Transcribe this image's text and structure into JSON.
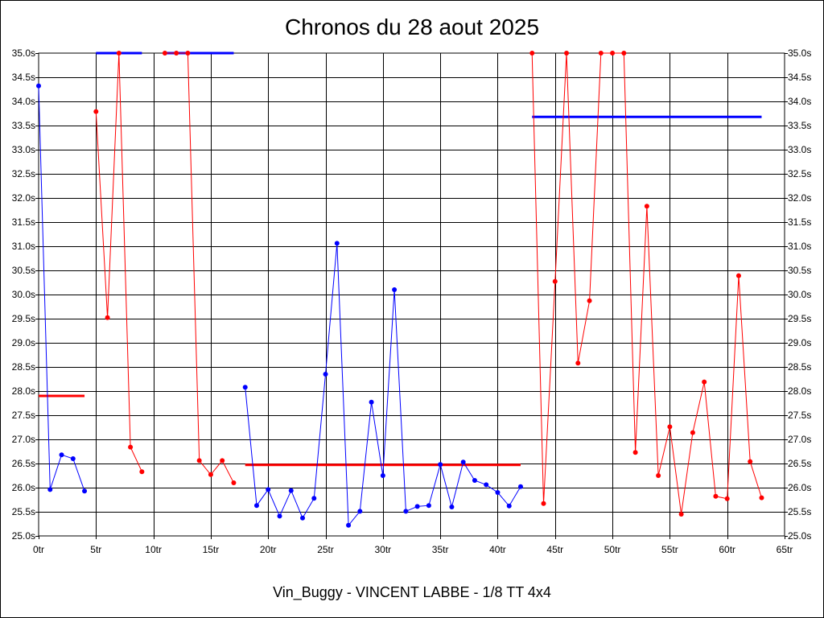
{
  "chart_data": {
    "type": "line",
    "title": "Chronos du 28 aout 2025",
    "subtitle": "Vin_Buggy - VINCENT LABBE - 1/8 TT 4x4",
    "xlim": [
      0,
      65
    ],
    "ylim": [
      25.0,
      35.0
    ],
    "x_ticks": [
      0,
      5,
      10,
      15,
      20,
      25,
      30,
      35,
      40,
      45,
      50,
      55,
      60,
      65
    ],
    "x_tick_labels": [
      "0tr",
      "5tr",
      "10tr",
      "15tr",
      "20tr",
      "25tr",
      "30tr",
      "35tr",
      "40tr",
      "45tr",
      "50tr",
      "55tr",
      "60tr",
      "65tr"
    ],
    "y_ticks": [
      25.0,
      25.5,
      26.0,
      26.5,
      27.0,
      27.5,
      28.0,
      28.5,
      29.0,
      29.5,
      30.0,
      30.5,
      31.0,
      31.5,
      32.0,
      32.5,
      33.0,
      33.5,
      34.0,
      34.5,
      35.0
    ],
    "y_tick_labels": [
      "25.0s",
      "25.5s",
      "26.0s",
      "26.5s",
      "27.0s",
      "27.5s",
      "28.0s",
      "28.5s",
      "29.0s",
      "29.5s",
      "30.0s",
      "30.5s",
      "31.0s",
      "31.5s",
      "32.0s",
      "32.5s",
      "33.0s",
      "33.5s",
      "34.0s",
      "34.5s",
      "35.0s"
    ],
    "grid": true,
    "y_axis_labels_both_sides": true,
    "colors": {
      "blue": "#0000ff",
      "red": "#ff0000"
    },
    "series": [
      {
        "color": "#0000ff",
        "points": [
          [
            0,
            34.32
          ],
          [
            1,
            25.96
          ],
          [
            2,
            26.68
          ],
          [
            3,
            26.6
          ],
          [
            4,
            25.93
          ]
        ]
      },
      {
        "color": "#ff0000",
        "points": [
          [
            5,
            33.79
          ],
          [
            6,
            29.52
          ],
          [
            7,
            35.0
          ],
          [
            8,
            26.84
          ],
          [
            9,
            26.33
          ]
        ]
      },
      {
        "color": "#ff0000",
        "points": [
          [
            11,
            35.0
          ],
          [
            12,
            35.0
          ],
          [
            13,
            35.0
          ],
          [
            14,
            26.56
          ],
          [
            15,
            26.27
          ],
          [
            16,
            26.56
          ],
          [
            17,
            26.1
          ]
        ]
      },
      {
        "color": "#0000ff",
        "points": [
          [
            18,
            28.08
          ],
          [
            19,
            25.63
          ],
          [
            20,
            25.96
          ],
          [
            21,
            25.41
          ],
          [
            22,
            25.94
          ],
          [
            23,
            25.37
          ],
          [
            24,
            25.78
          ],
          [
            25,
            28.35
          ],
          [
            26,
            31.06
          ],
          [
            27,
            25.22
          ],
          [
            28,
            25.51
          ],
          [
            29,
            27.77
          ],
          [
            30,
            26.25
          ],
          [
            31,
            30.1
          ],
          [
            32,
            25.51
          ],
          [
            33,
            25.61
          ],
          [
            34,
            25.63
          ],
          [
            35,
            26.48
          ],
          [
            36,
            25.6
          ],
          [
            37,
            26.53
          ],
          [
            38,
            26.15
          ],
          [
            39,
            26.06
          ],
          [
            40,
            25.9
          ],
          [
            41,
            25.62
          ],
          [
            42,
            26.02
          ]
        ]
      },
      {
        "color": "#ff0000",
        "points": [
          [
            43,
            35.0
          ],
          [
            44,
            25.67
          ],
          [
            45,
            30.27
          ],
          [
            46,
            35.0
          ],
          [
            47,
            28.58
          ],
          [
            48,
            29.87
          ],
          [
            49,
            35.0
          ],
          [
            50,
            35.0
          ],
          [
            51,
            35.0
          ],
          [
            52,
            26.73
          ],
          [
            53,
            31.83
          ],
          [
            54,
            26.25
          ],
          [
            55,
            27.26
          ],
          [
            56,
            25.45
          ],
          [
            57,
            27.14
          ],
          [
            58,
            28.19
          ],
          [
            59,
            25.82
          ],
          [
            60,
            25.77
          ],
          [
            61,
            30.39
          ],
          [
            62,
            26.54
          ],
          [
            63,
            25.79
          ]
        ]
      }
    ],
    "reference_lines": [
      {
        "color": "#ff0000",
        "x": [
          0,
          4
        ],
        "y": 27.9
      },
      {
        "color": "#0000ff",
        "x": [
          5,
          9
        ],
        "y": 35.0
      },
      {
        "color": "#0000ff",
        "x": [
          11,
          17
        ],
        "y": 35.0
      },
      {
        "color": "#ff0000",
        "x": [
          18,
          42
        ],
        "y": 26.47
      },
      {
        "color": "#0000ff",
        "x": [
          43,
          63
        ],
        "y": 33.68
      }
    ]
  }
}
